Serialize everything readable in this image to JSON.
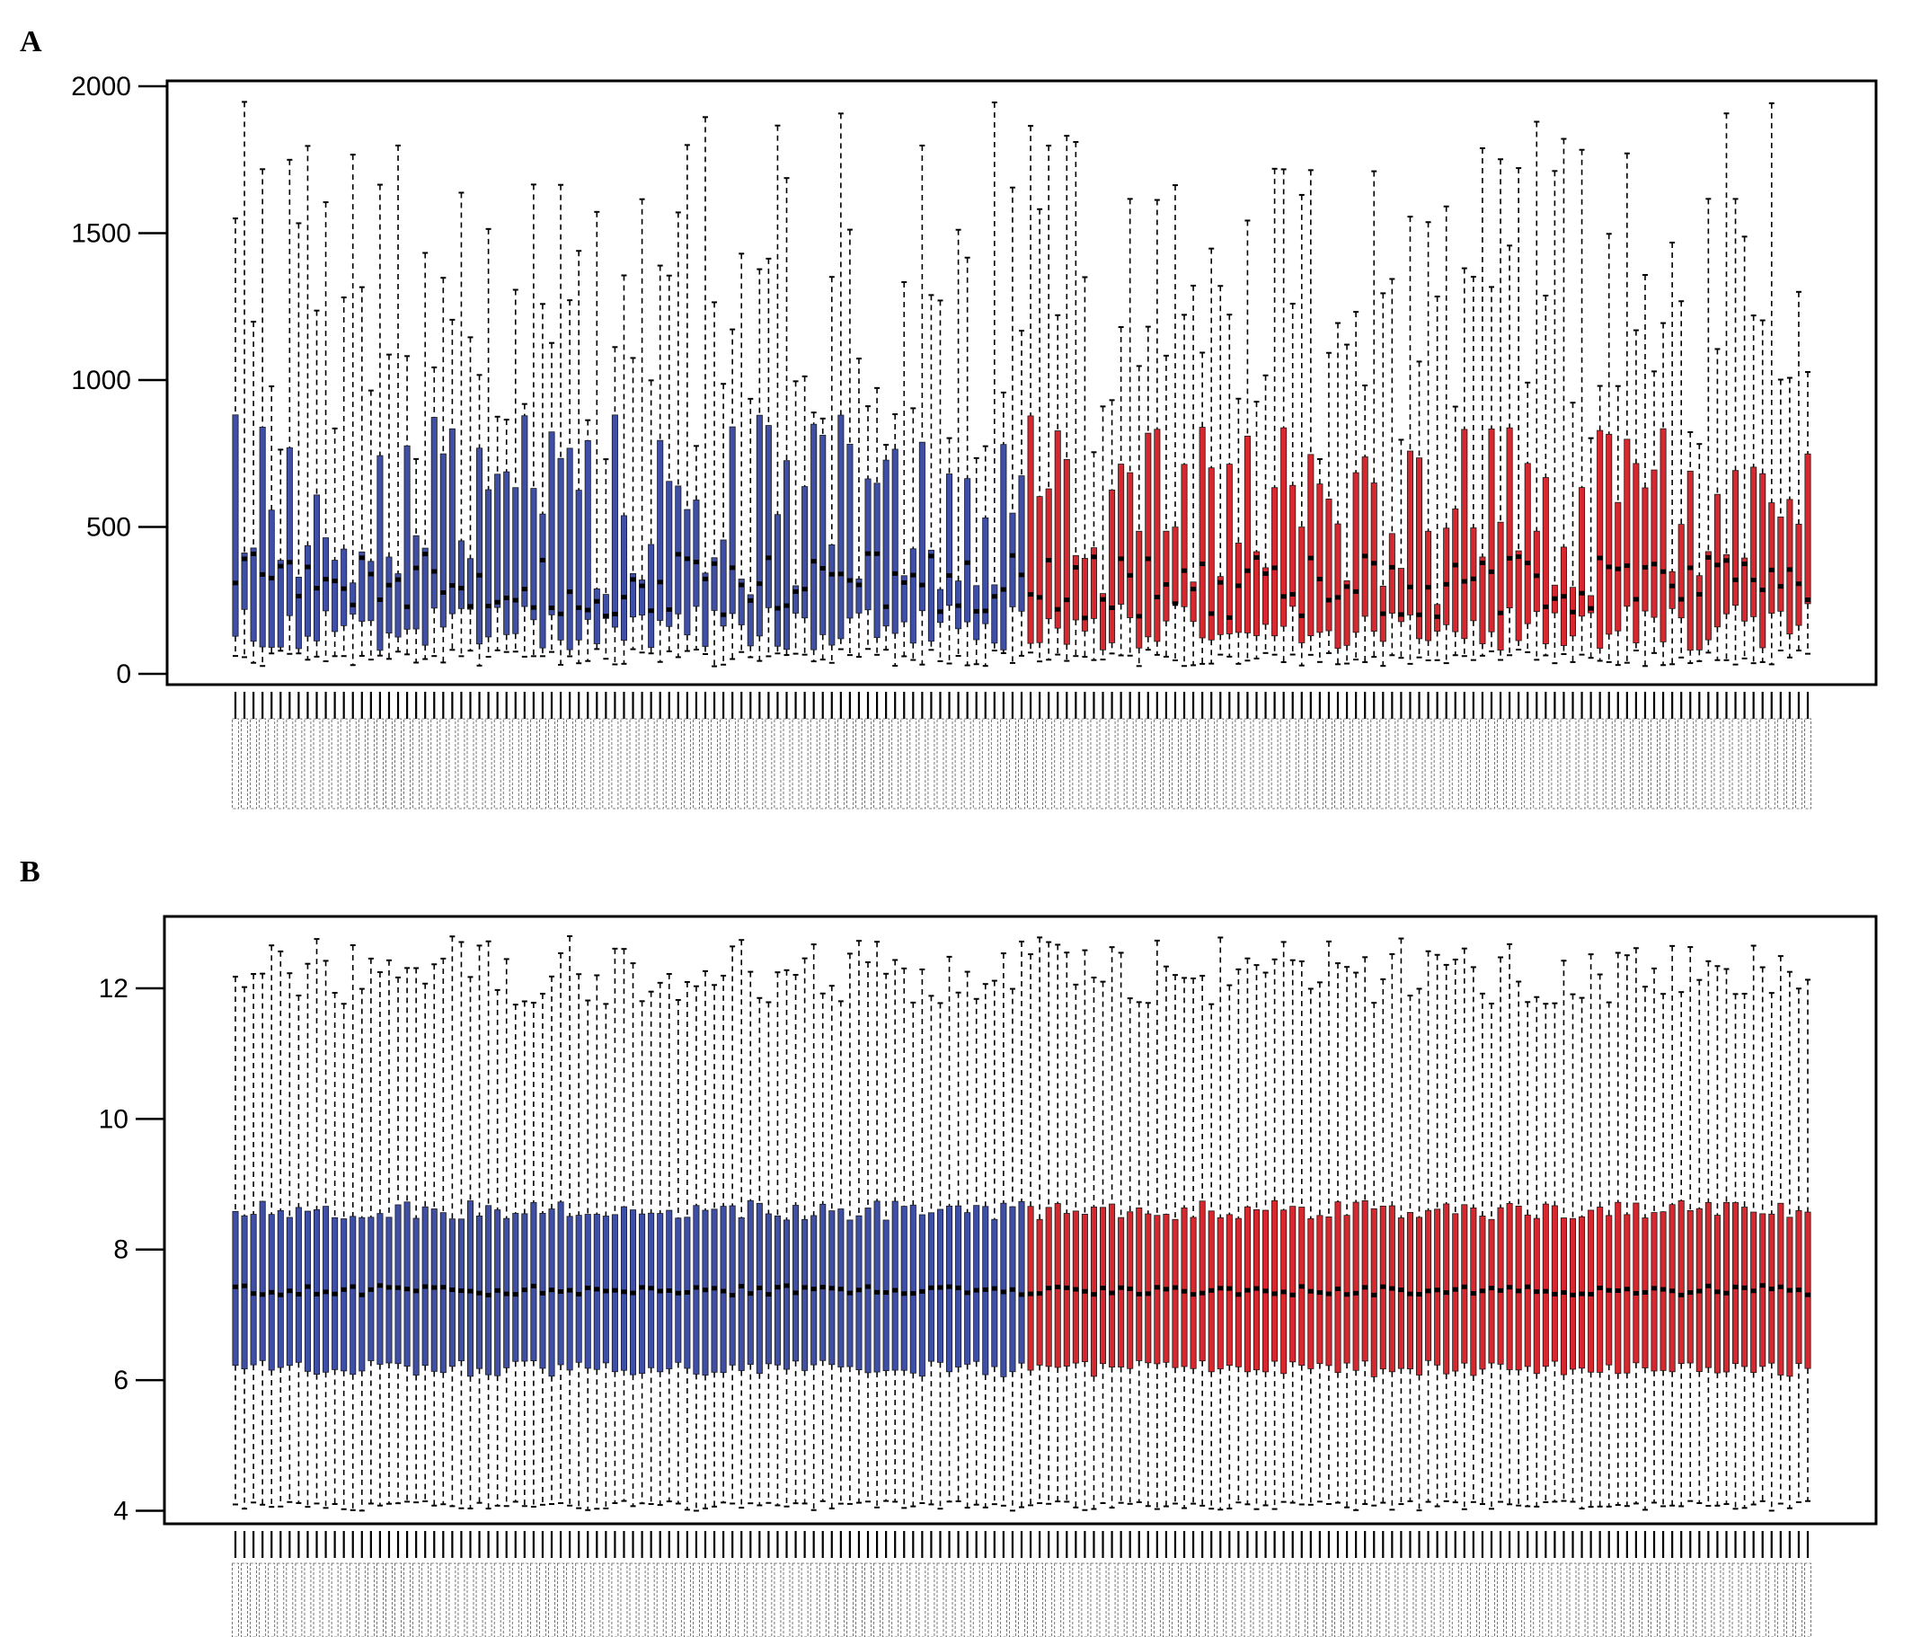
{
  "panels": {
    "a_label": "A",
    "b_label": "B"
  },
  "colors": {
    "group1": "#3f4fa6",
    "group2": "#d6282e",
    "median": "#000000"
  },
  "chart_data": [
    {
      "type": "boxplot",
      "panel": "A",
      "title": "",
      "xlabel": "",
      "ylabel": "",
      "ylim": [
        0,
        2000
      ],
      "yticks": [
        0,
        500,
        1000,
        1500,
        2000
      ],
      "n_samples": 175,
      "groups": [
        {
          "color": "#3f4fa6",
          "count": 88
        },
        {
          "color": "#d6282e",
          "count": 87
        }
      ],
      "summary": {
        "whisker_low_approx": [
          25,
          85
        ],
        "q1_approx": [
          80,
          240
        ],
        "median_approx": [
          190,
          410
        ],
        "q3_approx": [
          230,
          890
        ],
        "whisker_high_approx": [
          730,
          1950
        ]
      }
    },
    {
      "type": "boxplot",
      "panel": "B",
      "title": "",
      "xlabel": "",
      "ylabel": "",
      "ylim": [
        3.8,
        13.1
      ],
      "yticks": [
        4,
        6,
        8,
        10,
        12
      ],
      "n_samples": 175,
      "groups": [
        {
          "color": "#3f4fa6",
          "count": 88
        },
        {
          "color": "#d6282e",
          "count": 87
        }
      ],
      "summary": {
        "whisker_low_approx": [
          4.0,
          4.15
        ],
        "q1_approx": [
          6.05,
          6.3
        ],
        "median_approx": [
          7.3,
          7.45
        ],
        "q3_approx": [
          8.45,
          8.75
        ],
        "whisker_high_approx": [
          11.75,
          12.8
        ]
      }
    }
  ]
}
